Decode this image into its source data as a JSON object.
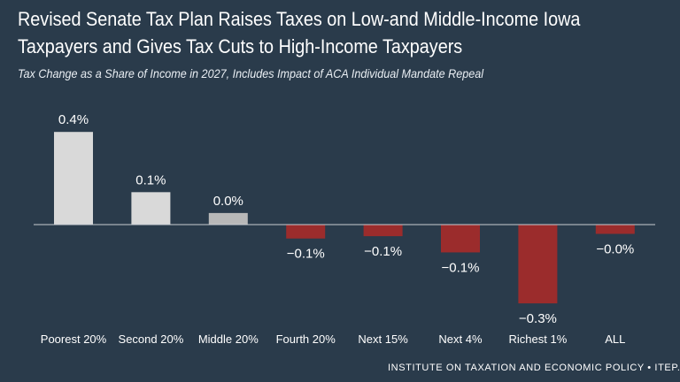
{
  "header": {
    "title": "Revised Senate Tax Plan Raises Taxes on Low-and Middle-Income Iowa Taxpayers and Gives Tax Cuts to High-Income Taxpayers",
    "subtitle": "Tax Change as a Share of Income in 2027, Includes Impact of ACA Individual Mandate Repeal"
  },
  "footer": {
    "source": "INSTITUTE ON TAXATION AND ECONOMIC POLICY • ITEP.ORG"
  },
  "colors": {
    "background": "#2a3b4b",
    "positive_bar": "#d9d9d9",
    "neutral_bar": "#b8b8b8",
    "negative_bar": "#9b2c2c",
    "axis": "#c8cdd2",
    "text": "#ffffff"
  },
  "chart_data": {
    "type": "bar",
    "categories": [
      "Poorest 20%",
      "Second 20%",
      "Middle 20%",
      "Fourth 20%",
      "Next 15%",
      "Next 4%",
      "Richest 1%",
      "ALL"
    ],
    "values": [
      0.4,
      0.14,
      0.05,
      -0.06,
      -0.05,
      -0.12,
      -0.34,
      -0.04
    ],
    "data_labels": [
      "0.4%",
      "0.1%",
      "0.0%",
      "−0.1%",
      "−0.1%",
      "−0.1%",
      "−0.3%",
      "−0.0%"
    ],
    "ylim": [
      -0.35,
      0.45
    ],
    "grid": false,
    "legend": "none"
  }
}
